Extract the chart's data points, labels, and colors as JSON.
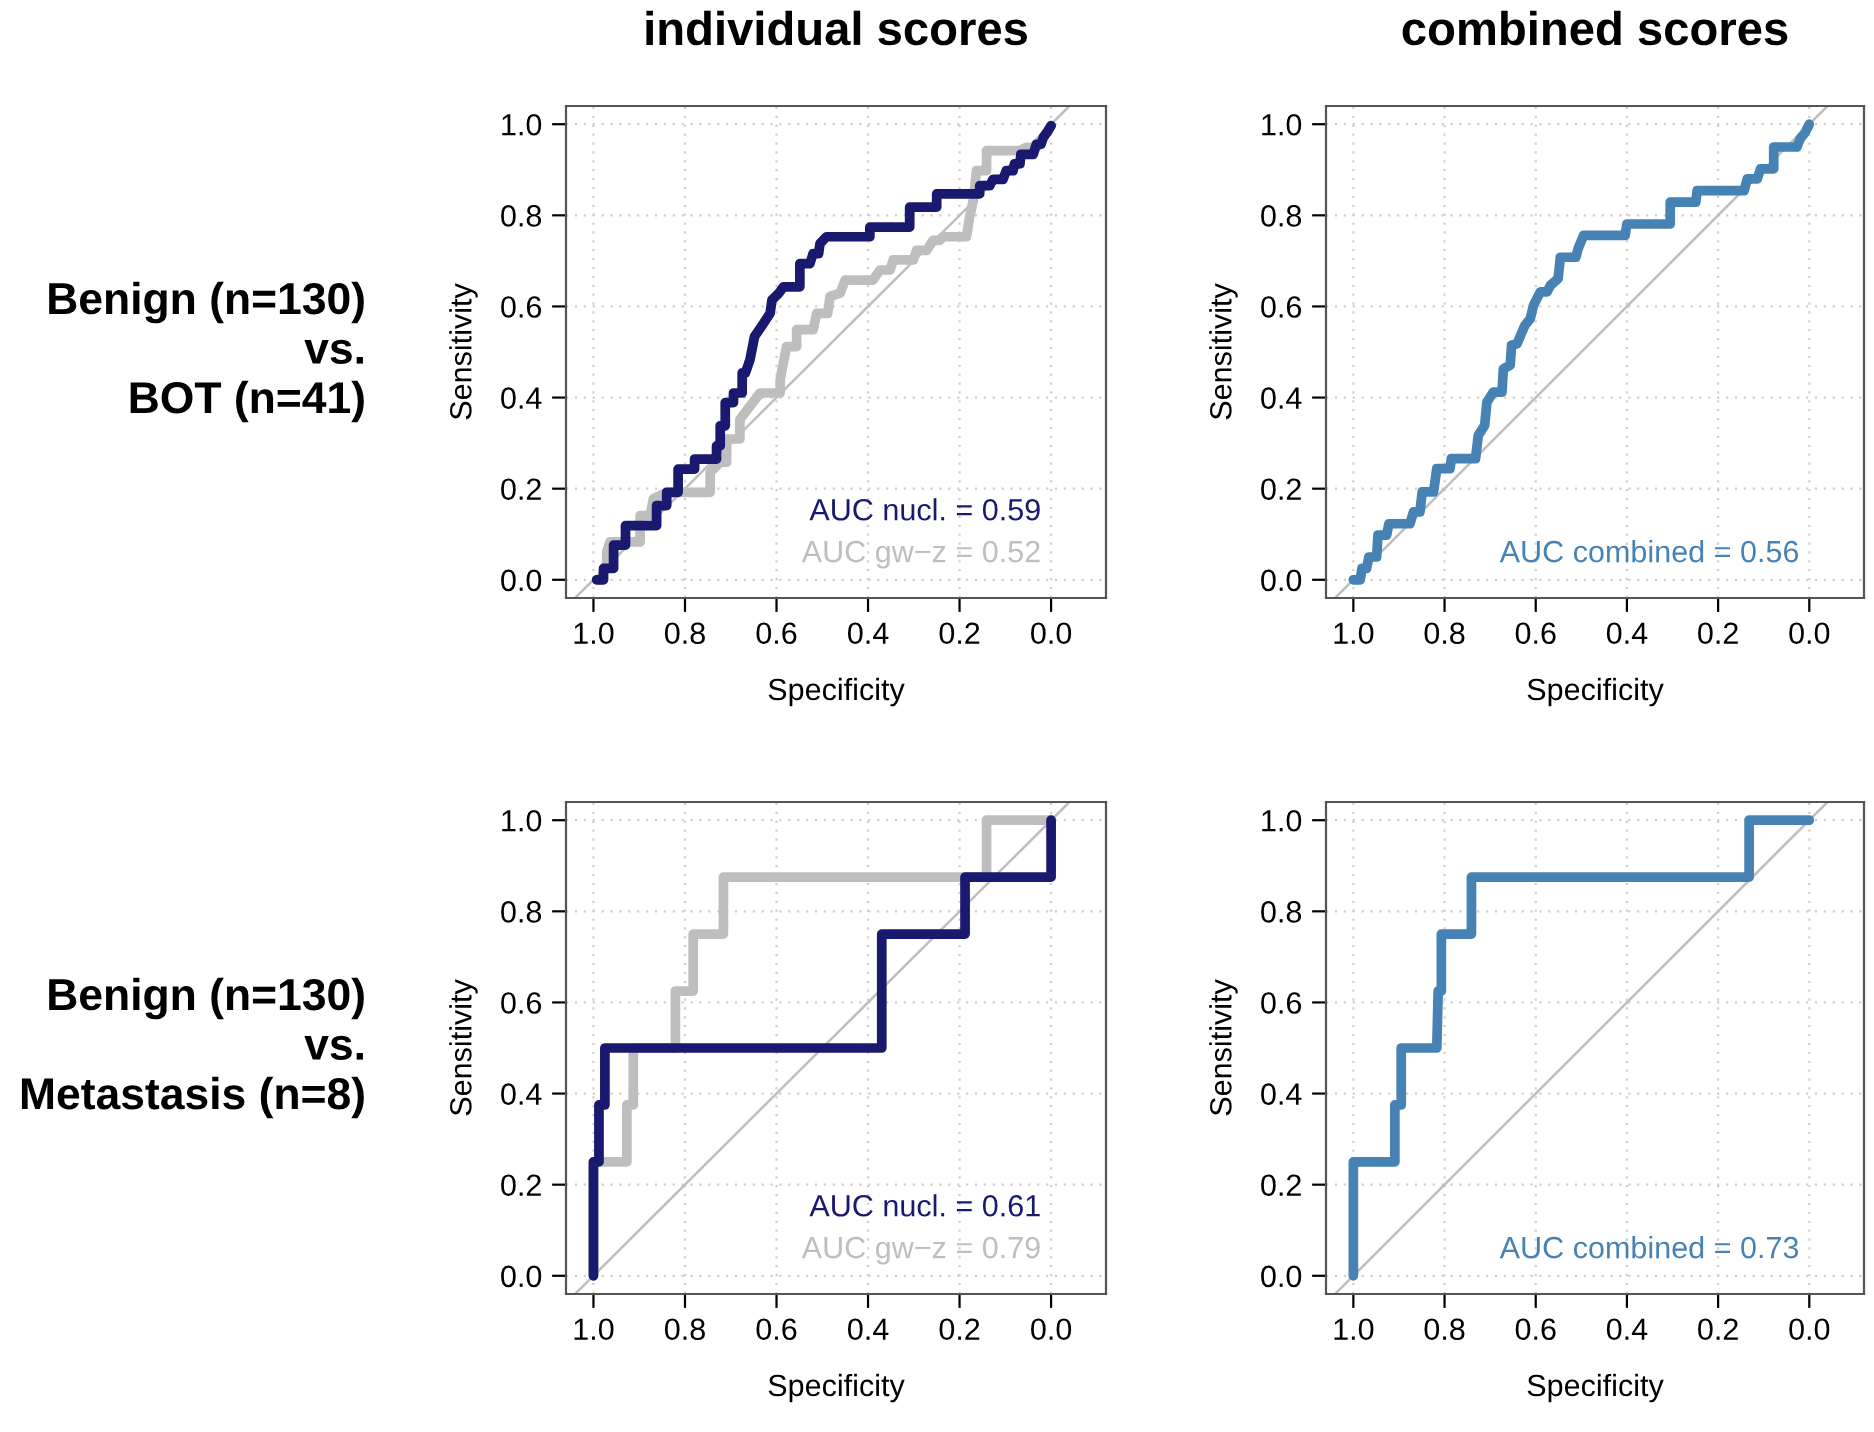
{
  "chart_data": [
    {
      "type": "line",
      "title": "individual scores",
      "xlabel": "Specificity",
      "ylabel": "Sensitivity",
      "annotations": [
        "Benign (n=130)\nvs.\nBOT (n=41)"
      ],
      "xlim": [
        1.06,
        -0.12
      ],
      "ylim": [
        -0.04,
        1.04
      ],
      "xticks": [
        {
          "value": 1,
          "label": "1.0"
        },
        {
          "value": 0.8,
          "label": "0.8"
        },
        {
          "value": 0.6,
          "label": "0.6"
        },
        {
          "value": 0.4,
          "label": "0.4"
        },
        {
          "value": 0.2,
          "label": "0.2"
        },
        {
          "value": 0,
          "label": "0.0"
        }
      ],
      "yticks": [
        {
          "value": 0,
          "label": "0.0"
        },
        {
          "value": 0.2,
          "label": "0.2"
        },
        {
          "value": 0.4,
          "label": "0.4"
        },
        {
          "value": 0.6,
          "label": "0.6"
        },
        {
          "value": 0.8,
          "label": "0.8"
        },
        {
          "value": 1,
          "label": "1.0"
        }
      ],
      "grid": true,
      "legend": "bottom right",
      "series": [
        {
          "color": "#bebebe",
          "x": [
            1.04,
            -0.04
          ],
          "values": [
            -0.04,
            1.04
          ]
        },
        {
          "name": "AUC gw−z = 0.52",
          "color": "#bebebe",
          "x": [
            0.985,
            0.971,
            0.971,
            0.964,
            0.898,
            0.898,
            0.876,
            0.869,
            0.84,
            0.745,
            0.745,
            0.723,
            0.709,
            0.709,
            0.68,
            0.68,
            0.658,
            0.636,
            0.592,
            0.592,
            0.578,
            0.556,
            0.556,
            0.52,
            0.512,
            0.488,
            0.483,
            0.461,
            0.45,
            0.389,
            0.374,
            0.352,
            0.345,
            0.301,
            0.294,
            0.272,
            0.258,
            0.243,
            0.236,
            0.185,
            0.178,
            0.17,
            0.163,
            0.141,
            0.141,
            0.068,
            0.054,
            0.032,
            0
          ],
          "values": [
            0,
            0.032,
            0.061,
            0.083,
            0.083,
            0.141,
            0.141,
            0.178,
            0.192,
            0.192,
            0.236,
            0.258,
            0.258,
            0.309,
            0.309,
            0.352,
            0.381,
            0.41,
            0.41,
            0.44,
            0.512,
            0.512,
            0.549,
            0.549,
            0.585,
            0.585,
            0.622,
            0.629,
            0.658,
            0.658,
            0.68,
            0.68,
            0.702,
            0.702,
            0.723,
            0.723,
            0.745,
            0.745,
            0.753,
            0.753,
            0.796,
            0.833,
            0.898,
            0.898,
            0.942,
            0.942,
            0.949,
            0.949,
            0.997
          ]
        },
        {
          "name": "AUC nucl. = 0.59",
          "color": "#191970",
          "x": [
            0.993,
            0.978,
            0.978,
            0.956,
            0.956,
            0.93,
            0.93,
            0.862,
            0.862,
            0.84,
            0.84,
            0.815,
            0.815,
            0.779,
            0.779,
            0.731,
            0.731,
            0.723,
            0.723,
            0.712,
            0.712,
            0.694,
            0.694,
            0.675,
            0.675,
            0.668,
            0.658,
            0.648,
            0.633,
            0.614,
            0.61,
            0.595,
            0.585,
            0.549,
            0.549,
            0.527,
            0.52,
            0.508,
            0.505,
            0.491,
            0.396,
            0.396,
            0.309,
            0.309,
            0.25,
            0.25,
            0.156,
            0.156,
            0.134,
            0.127,
            0.105,
            0.098,
            0.083,
            0.08,
            0.068,
            0.066,
            0.039,
            0.032,
            0.022,
            0.017,
            0.007,
            0
          ],
          "values": [
            0,
            0,
            0.025,
            0.025,
            0.076,
            0.076,
            0.119,
            0.119,
            0.163,
            0.163,
            0.192,
            0.192,
            0.243,
            0.243,
            0.265,
            0.265,
            0.294,
            0.294,
            0.338,
            0.338,
            0.389,
            0.389,
            0.41,
            0.41,
            0.454,
            0.454,
            0.483,
            0.534,
            0.556,
            0.585,
            0.614,
            0.629,
            0.643,
            0.643,
            0.694,
            0.694,
            0.716,
            0.716,
            0.738,
            0.753,
            0.753,
            0.774,
            0.774,
            0.818,
            0.818,
            0.847,
            0.847,
            0.865,
            0.865,
            0.879,
            0.879,
            0.898,
            0.898,
            0.913,
            0.913,
            0.934,
            0.934,
            0.956,
            0.956,
            0.971,
            0.985,
            0.997
          ]
        }
      ]
    },
    {
      "type": "line",
      "title": "combined scores",
      "xlabel": "Specificity",
      "ylabel": "Sensitivity",
      "xlim": [
        1.06,
        -0.12
      ],
      "ylim": [
        -0.04,
        1.04
      ],
      "xticks": [
        {
          "value": 1,
          "label": "1.0"
        },
        {
          "value": 0.8,
          "label": "0.8"
        },
        {
          "value": 0.6,
          "label": "0.6"
        },
        {
          "value": 0.4,
          "label": "0.4"
        },
        {
          "value": 0.2,
          "label": "0.2"
        },
        {
          "value": 0,
          "label": "0.0"
        }
      ],
      "yticks": [
        {
          "value": 0,
          "label": "0.0"
        },
        {
          "value": 0.2,
          "label": "0.2"
        },
        {
          "value": 0.4,
          "label": "0.4"
        },
        {
          "value": 0.6,
          "label": "0.6"
        },
        {
          "value": 0.8,
          "label": "0.8"
        },
        {
          "value": 1,
          "label": "1.0"
        }
      ],
      "grid": true,
      "legend": "bottom right",
      "series": [
        {
          "color": "#bebebe",
          "x": [
            1.04,
            -0.04
          ],
          "values": [
            -0.04,
            1.04
          ]
        },
        {
          "name": "AUC combined = 0.56",
          "color": "#4682b4",
          "x": [
            1.0,
            0.985,
            0.981,
            0.971,
            0.966,
            0.949,
            0.946,
            0.927,
            0.922,
            0.876,
            0.868,
            0.854,
            0.849,
            0.824,
            0.817,
            0.788,
            0.785,
            0.732,
            0.726,
            0.712,
            0.707,
            0.693,
            0.674,
            0.671,
            0.656,
            0.653,
            0.641,
            0.63,
            0.624,
            0.612,
            0.605,
            0.59,
            0.575,
            0.568,
            0.551,
            0.546,
            0.512,
            0.507,
            0.495,
            0.404,
            0.4,
            0.305,
            0.305,
            0.249,
            0.246,
            0.143,
            0.136,
            0.114,
            0.107,
            0.078,
            0.078,
            0.027,
            0.02,
            0.009,
            0
          ],
          "values": [
            0,
            0,
            0.025,
            0.025,
            0.05,
            0.05,
            0.098,
            0.098,
            0.123,
            0.123,
            0.149,
            0.149,
            0.193,
            0.193,
            0.244,
            0.244,
            0.266,
            0.266,
            0.317,
            0.339,
            0.39,
            0.412,
            0.412,
            0.463,
            0.471,
            0.515,
            0.518,
            0.544,
            0.558,
            0.573,
            0.602,
            0.632,
            0.632,
            0.646,
            0.661,
            0.708,
            0.708,
            0.727,
            0.756,
            0.756,
            0.781,
            0.781,
            0.829,
            0.829,
            0.854,
            0.854,
            0.88,
            0.88,
            0.902,
            0.902,
            0.95,
            0.95,
            0.968,
            0.982,
            1.0
          ]
        }
      ]
    },
    {
      "type": "line",
      "xlabel": "Specificity",
      "ylabel": "Sensitivity",
      "annotations": [
        "Benign (n=130)\nvs.\nMetastasis (n=8)"
      ],
      "xlim": [
        1.06,
        -0.12
      ],
      "ylim": [
        -0.04,
        1.04
      ],
      "xticks": [
        {
          "value": 1,
          "label": "1.0"
        },
        {
          "value": 0.8,
          "label": "0.8"
        },
        {
          "value": 0.6,
          "label": "0.6"
        },
        {
          "value": 0.4,
          "label": "0.4"
        },
        {
          "value": 0.2,
          "label": "0.2"
        },
        {
          "value": 0,
          "label": "0.0"
        }
      ],
      "yticks": [
        {
          "value": 0,
          "label": "0.0"
        },
        {
          "value": 0.2,
          "label": "0.2"
        },
        {
          "value": 0.4,
          "label": "0.4"
        },
        {
          "value": 0.6,
          "label": "0.6"
        },
        {
          "value": 0.8,
          "label": "0.8"
        },
        {
          "value": 1,
          "label": "1.0"
        }
      ],
      "grid": true,
      "legend": "bottom right",
      "series": [
        {
          "color": "#bebebe",
          "x": [
            1.04,
            -0.04
          ],
          "values": [
            -0.04,
            1.04
          ]
        },
        {
          "name": "AUC gw−z = 0.79",
          "color": "#bebebe",
          "x": [
            1,
            1,
            0.927,
            0.927,
            0.913,
            0.913,
            0.821,
            0.821,
            0.782,
            0.782,
            0.716,
            0.716,
            0.141,
            0.141,
            0
          ],
          "values": [
            0,
            0.25,
            0.25,
            0.375,
            0.375,
            0.5,
            0.5,
            0.625,
            0.625,
            0.75,
            0.75,
            0.875,
            0.875,
            1,
            1
          ]
        },
        {
          "name": "AUC nucl. = 0.61",
          "color": "#191970",
          "x": [
            1,
            1,
            0.988,
            0.988,
            0.975,
            0.975,
            0.37,
            0.37,
            0.188,
            0.188,
            0,
            0
          ],
          "values": [
            0,
            0.25,
            0.25,
            0.375,
            0.375,
            0.5,
            0.5,
            0.75,
            0.75,
            0.875,
            0.875,
            1
          ]
        }
      ]
    },
    {
      "type": "line",
      "xlabel": "Specificity",
      "ylabel": "Sensitivity",
      "xlim": [
        1.06,
        -0.12
      ],
      "ylim": [
        -0.04,
        1.04
      ],
      "xticks": [
        {
          "value": 1,
          "label": "1.0"
        },
        {
          "value": 0.8,
          "label": "0.8"
        },
        {
          "value": 0.6,
          "label": "0.6"
        },
        {
          "value": 0.4,
          "label": "0.4"
        },
        {
          "value": 0.2,
          "label": "0.2"
        },
        {
          "value": 0,
          "label": "0.0"
        }
      ],
      "yticks": [
        {
          "value": 0,
          "label": "0.0"
        },
        {
          "value": 0.2,
          "label": "0.2"
        },
        {
          "value": 0.4,
          "label": "0.4"
        },
        {
          "value": 0.6,
          "label": "0.6"
        },
        {
          "value": 0.8,
          "label": "0.8"
        },
        {
          "value": 1,
          "label": "1.0"
        }
      ],
      "grid": true,
      "legend": "bottom right",
      "series": [
        {
          "color": "#bebebe",
          "x": [
            1.04,
            -0.04
          ],
          "values": [
            -0.04,
            1.04
          ]
        },
        {
          "name": "AUC combined = 0.73",
          "color": "#4682b4",
          "x": [
            1,
            1,
            0.909,
            0.909,
            0.895,
            0.895,
            0.817,
            0.814,
            0.807,
            0.807,
            0.741,
            0.741,
            0.132,
            0.132,
            0
          ],
          "values": [
            0,
            0.25,
            0.25,
            0.375,
            0.375,
            0.5,
            0.5,
            0.625,
            0.625,
            0.75,
            0.75,
            0.875,
            0.875,
            1,
            1
          ]
        }
      ]
    }
  ]
}
